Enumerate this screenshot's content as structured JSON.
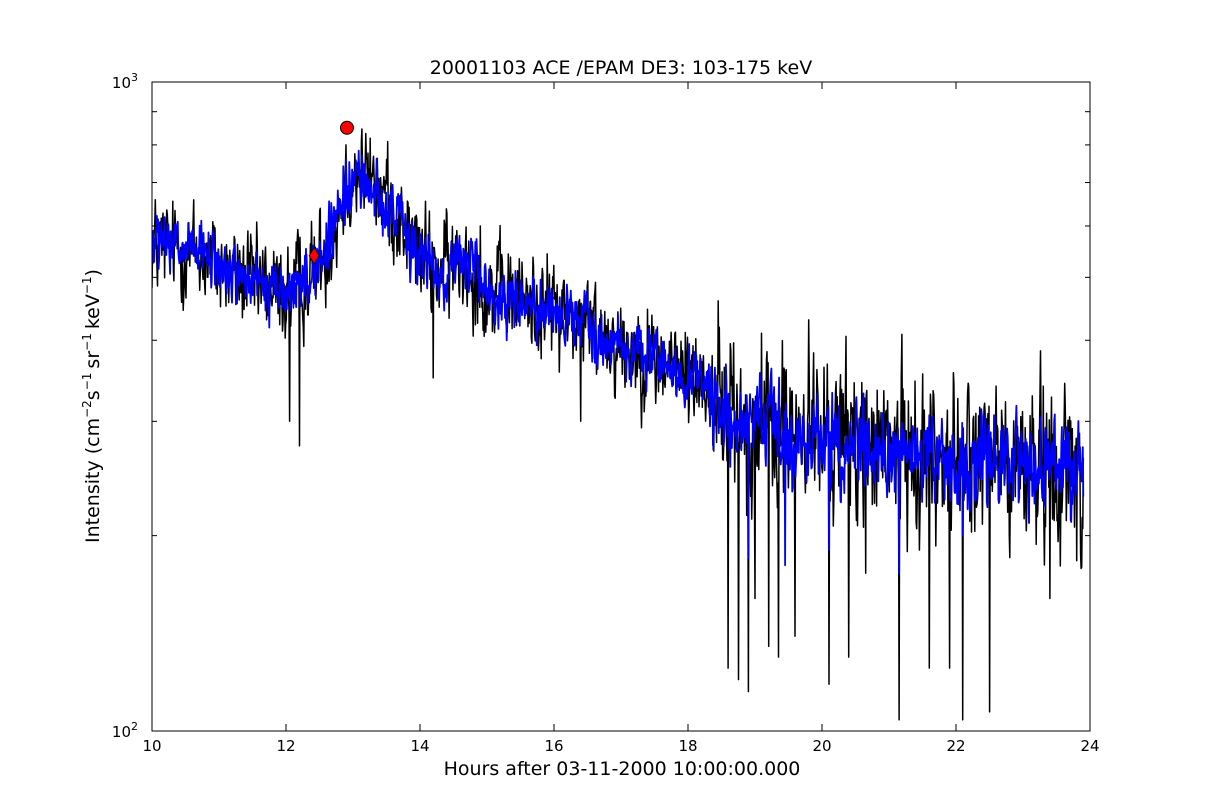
{
  "chart_data": {
    "type": "line",
    "title": "20001103 ACE /EPAM DE3: 103-175 keV",
    "xlabel": "Hours after 03-11-2000 10:00:00.000",
    "ylabel_parts": [
      "Intensity (cm",
      "−2",
      "s",
      "−1",
      "sr",
      "−1",
      "keV",
      "−1",
      ")"
    ],
    "xlim": [
      10,
      24
    ],
    "ylim": [
      100,
      1000
    ],
    "yscale": "log",
    "x_ticks": [
      10,
      12,
      14,
      16,
      18,
      20,
      22,
      24
    ],
    "x_tick_labels": [
      "10",
      "12",
      "14",
      "16",
      "18",
      "20",
      "22",
      "24"
    ],
    "y_major_ticks": [
      100,
      1000
    ],
    "y_tick_labels": [
      {
        "base": "10",
        "exp": "2"
      },
      {
        "base": "10",
        "exp": "3"
      }
    ],
    "y_minor_ticks": [
      200,
      300,
      400,
      500,
      600,
      700,
      800,
      900
    ],
    "grid": false,
    "series": [
      {
        "color": "#000000",
        "x_start": 10.0,
        "x_end": 23.9,
        "trend": [
          [
            10.0,
            560
          ],
          [
            10.7,
            545
          ],
          [
            11.0,
            520
          ],
          [
            11.5,
            490
          ],
          [
            12.0,
            470
          ],
          [
            12.4,
            510
          ],
          [
            12.7,
            580
          ],
          [
            12.9,
            700
          ],
          [
            13.1,
            730
          ],
          [
            13.5,
            660
          ],
          [
            14.0,
            545
          ],
          [
            14.3,
            510
          ],
          [
            14.7,
            540
          ],
          [
            15.0,
            470
          ],
          [
            15.5,
            465
          ],
          [
            16.0,
            445
          ],
          [
            16.5,
            420
          ],
          [
            17.0,
            395
          ],
          [
            17.5,
            375
          ],
          [
            18.0,
            355
          ],
          [
            18.3,
            345
          ],
          [
            18.5,
            310
          ],
          [
            19.0,
            295
          ],
          [
            19.5,
            290
          ],
          [
            20.0,
            285
          ],
          [
            20.5,
            280
          ],
          [
            21.0,
            270
          ],
          [
            21.5,
            265
          ],
          [
            22.0,
            262
          ],
          [
            22.5,
            260
          ],
          [
            23.0,
            258
          ],
          [
            23.5,
            258
          ],
          [
            23.9,
            255
          ]
        ],
        "dips": [
          [
            18.45,
            170
          ],
          [
            18.6,
            125
          ],
          [
            18.75,
            120
          ],
          [
            18.9,
            115
          ],
          [
            19.0,
            160
          ],
          [
            19.2,
            135
          ],
          [
            19.35,
            130
          ],
          [
            19.6,
            140
          ],
          [
            19.8,
            150
          ],
          [
            20.1,
            118
          ],
          [
            20.4,
            130
          ],
          [
            20.65,
            175
          ],
          [
            21.15,
            104
          ],
          [
            21.6,
            125
          ],
          [
            21.9,
            125
          ],
          [
            22.1,
            104
          ],
          [
            22.5,
            107
          ],
          [
            22.8,
            185
          ],
          [
            23.4,
            160
          ],
          [
            23.8,
            183
          ],
          [
            12.2,
            275
          ],
          [
            12.05,
            300
          ],
          [
            14.2,
            350
          ],
          [
            16.4,
            300
          ]
        ],
        "peaks": [
          [
            12.9,
            800
          ],
          [
            13.3,
            745
          ],
          [
            13.5,
            760
          ],
          [
            14.9,
            600
          ],
          [
            18.45,
            460
          ],
          [
            19.1,
            410
          ],
          [
            19.8,
            430
          ],
          [
            21.5,
            355
          ],
          [
            22.6,
            340
          ],
          [
            23.3,
            340
          ]
        ]
      },
      {
        "color": "#0000ff",
        "x_start": 10.0,
        "x_end": 23.9,
        "trend": [
          [
            10.0,
            560
          ],
          [
            10.7,
            545
          ],
          [
            11.0,
            520
          ],
          [
            11.5,
            490
          ],
          [
            12.0,
            470
          ],
          [
            12.4,
            510
          ],
          [
            12.7,
            580
          ],
          [
            12.9,
            690
          ],
          [
            13.1,
            715
          ],
          [
            13.5,
            650
          ],
          [
            14.0,
            540
          ],
          [
            14.3,
            505
          ],
          [
            14.7,
            535
          ],
          [
            15.0,
            468
          ],
          [
            15.5,
            462
          ],
          [
            16.0,
            443
          ],
          [
            16.5,
            418
          ],
          [
            17.0,
            393
          ],
          [
            17.5,
            372
          ],
          [
            18.0,
            352
          ],
          [
            18.3,
            342
          ],
          [
            18.5,
            305
          ],
          [
            19.0,
            292
          ],
          [
            19.5,
            287
          ],
          [
            20.0,
            282
          ],
          [
            20.5,
            277
          ],
          [
            21.0,
            268
          ],
          [
            21.5,
            263
          ],
          [
            22.0,
            260
          ],
          [
            22.5,
            258
          ],
          [
            23.0,
            256
          ],
          [
            23.5,
            256
          ],
          [
            23.9,
            253
          ]
        ],
        "dips": [
          [
            21.15,
            175
          ],
          [
            18.9,
            185
          ],
          [
            19.45,
            180
          ],
          [
            20.1,
            190
          ],
          [
            22.1,
            200
          ]
        ],
        "peaks": [
          [
            12.9,
            760
          ],
          [
            13.2,
            720
          ]
        ]
      }
    ],
    "markers": [
      {
        "shape": "diamond",
        "x": 12.42,
        "y": 540,
        "color": "#ff0000"
      },
      {
        "shape": "circle",
        "x": 12.91,
        "y": 850,
        "color": "#ff0000"
      }
    ]
  }
}
